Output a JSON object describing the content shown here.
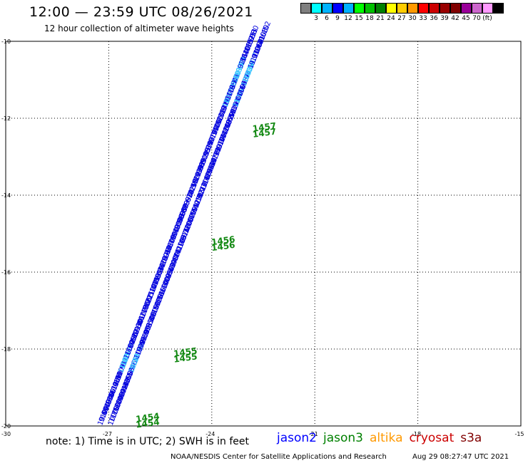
{
  "header": {
    "title": "12:00 — 23:59 UTC 08/26/2021",
    "subtitle": "12 hour collection of altimeter wave heights"
  },
  "legend": {
    "colors": [
      "#7f7f7f",
      "#00ffff",
      "#00b3ff",
      "#0000ff",
      "#00b0ff",
      "#00ff00",
      "#00c000",
      "#008000",
      "#ffff00",
      "#ffcc00",
      "#ff9900",
      "#ff0000",
      "#cc0000",
      "#990000",
      "#800000",
      "#990099",
      "#cc66cc",
      "#ff99ff",
      "#000000"
    ],
    "labels": [
      "3",
      "6",
      "9",
      "12",
      "15",
      "18",
      "21",
      "24",
      "27",
      "30",
      "33",
      "36",
      "39",
      "42",
      "45",
      "70",
      "(ft)"
    ]
  },
  "map": {
    "x_ticks": [
      "-27",
      "-24",
      "-21",
      "-18",
      "-15"
    ],
    "y_ticks": [
      "-10",
      "-12",
      "-14",
      "-16",
      "-18",
      "-20"
    ],
    "corner_label": "-30"
  },
  "chart_data": {
    "type": "scatter",
    "x_axis": "longitude",
    "y_axis": "latitude",
    "xlim": [
      -30,
      -15
    ],
    "ylim": [
      -20,
      -10
    ],
    "tracks": [
      {
        "pass_times": [
          "1457",
          "1456",
          "1455",
          "1454"
        ],
        "track_start": [
          -27.2,
          -20.0
        ],
        "track_end": [
          -22.8,
          -10.0
        ],
        "first_label": "10.04",
        "last_label": "9.80"
      },
      {
        "pass_times": [
          "1457",
          "1456",
          "1455",
          "1454"
        ],
        "track_start": [
          -26.9,
          -20.0
        ],
        "track_end": [
          -22.5,
          -10.0
        ]
      }
    ],
    "time_labels": [
      {
        "text": "1457",
        "lon": -22.8,
        "lat": -12.35
      },
      {
        "text": "1457",
        "lon": -22.8,
        "lat": -12.5
      },
      {
        "text": "1456",
        "lon": -24.0,
        "lat": -15.3
      },
      {
        "text": "1456",
        "lon": -24.0,
        "lat": -15.45
      },
      {
        "text": "1455",
        "lon": -25.1,
        "lat": -18.2
      },
      {
        "text": "1455",
        "lon": -25.1,
        "lat": -18.35
      },
      {
        "text": "1454",
        "lon": -26.2,
        "lat": -19.9
      },
      {
        "text": "1454",
        "lon": -26.2,
        "lat": -20.05
      }
    ]
  },
  "satellites": [
    {
      "name": "jason2",
      "color": "#0000ff"
    },
    {
      "name": "jason3",
      "color": "#008000"
    },
    {
      "name": "altika",
      "color": "#ff9900"
    },
    {
      "name": "cryosat",
      "color": "#cc0000"
    },
    {
      "name": "s3a",
      "color": "#800000"
    }
  ],
  "footer": {
    "note": "note: 1) Time is in UTC; 2) SWH is in feet",
    "credit": "NOAA/NESDIS Center for Satellite Applications and Research",
    "timestamp": "Aug 29 08:27:47 UTC 2021"
  }
}
